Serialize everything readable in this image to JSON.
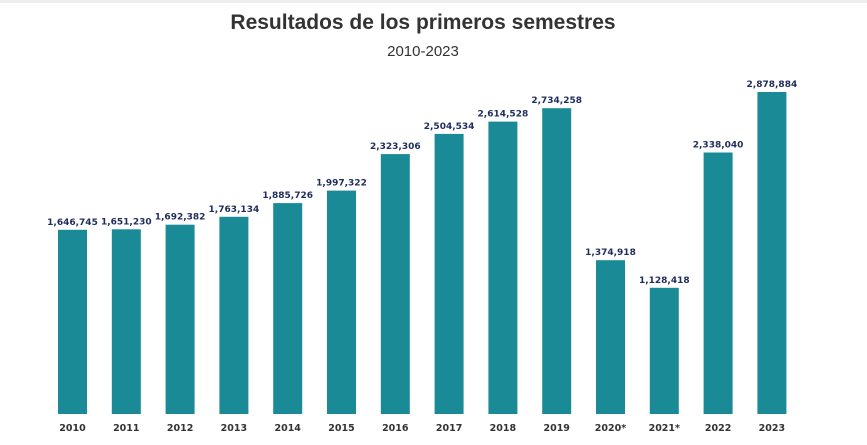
{
  "chart_data": {
    "type": "bar",
    "title": "Resultados de los primeros semestres",
    "subtitle": "2010-2023",
    "xlabel": "",
    "ylabel": "",
    "categories": [
      "2010",
      "2011",
      "2012",
      "2013",
      "2014",
      "2015",
      "2016",
      "2017",
      "2018",
      "2019",
      "2020*",
      "2021*",
      "2022",
      "2023"
    ],
    "values": [
      1646745,
      1651230,
      1692382,
      1763134,
      1885726,
      1997322,
      2323306,
      2504534,
      2614528,
      2734258,
      1374918,
      1128418,
      2338040,
      2878884
    ],
    "value_labels": [
      "1,646,745",
      "1,651,230",
      "1,692,382",
      "1,763,134",
      "1,885,726",
      "1,997,322",
      "2,323,306",
      "2,504,534",
      "2,614,528",
      "2,734,258",
      "1,374,918",
      "1,128,418",
      "2,338,040",
      "2,878,884"
    ],
    "ylim": [
      0,
      3000000
    ],
    "grid": false,
    "legend": "none",
    "bar_color": "#1a8b96",
    "label_color": "#1f2d5c"
  }
}
